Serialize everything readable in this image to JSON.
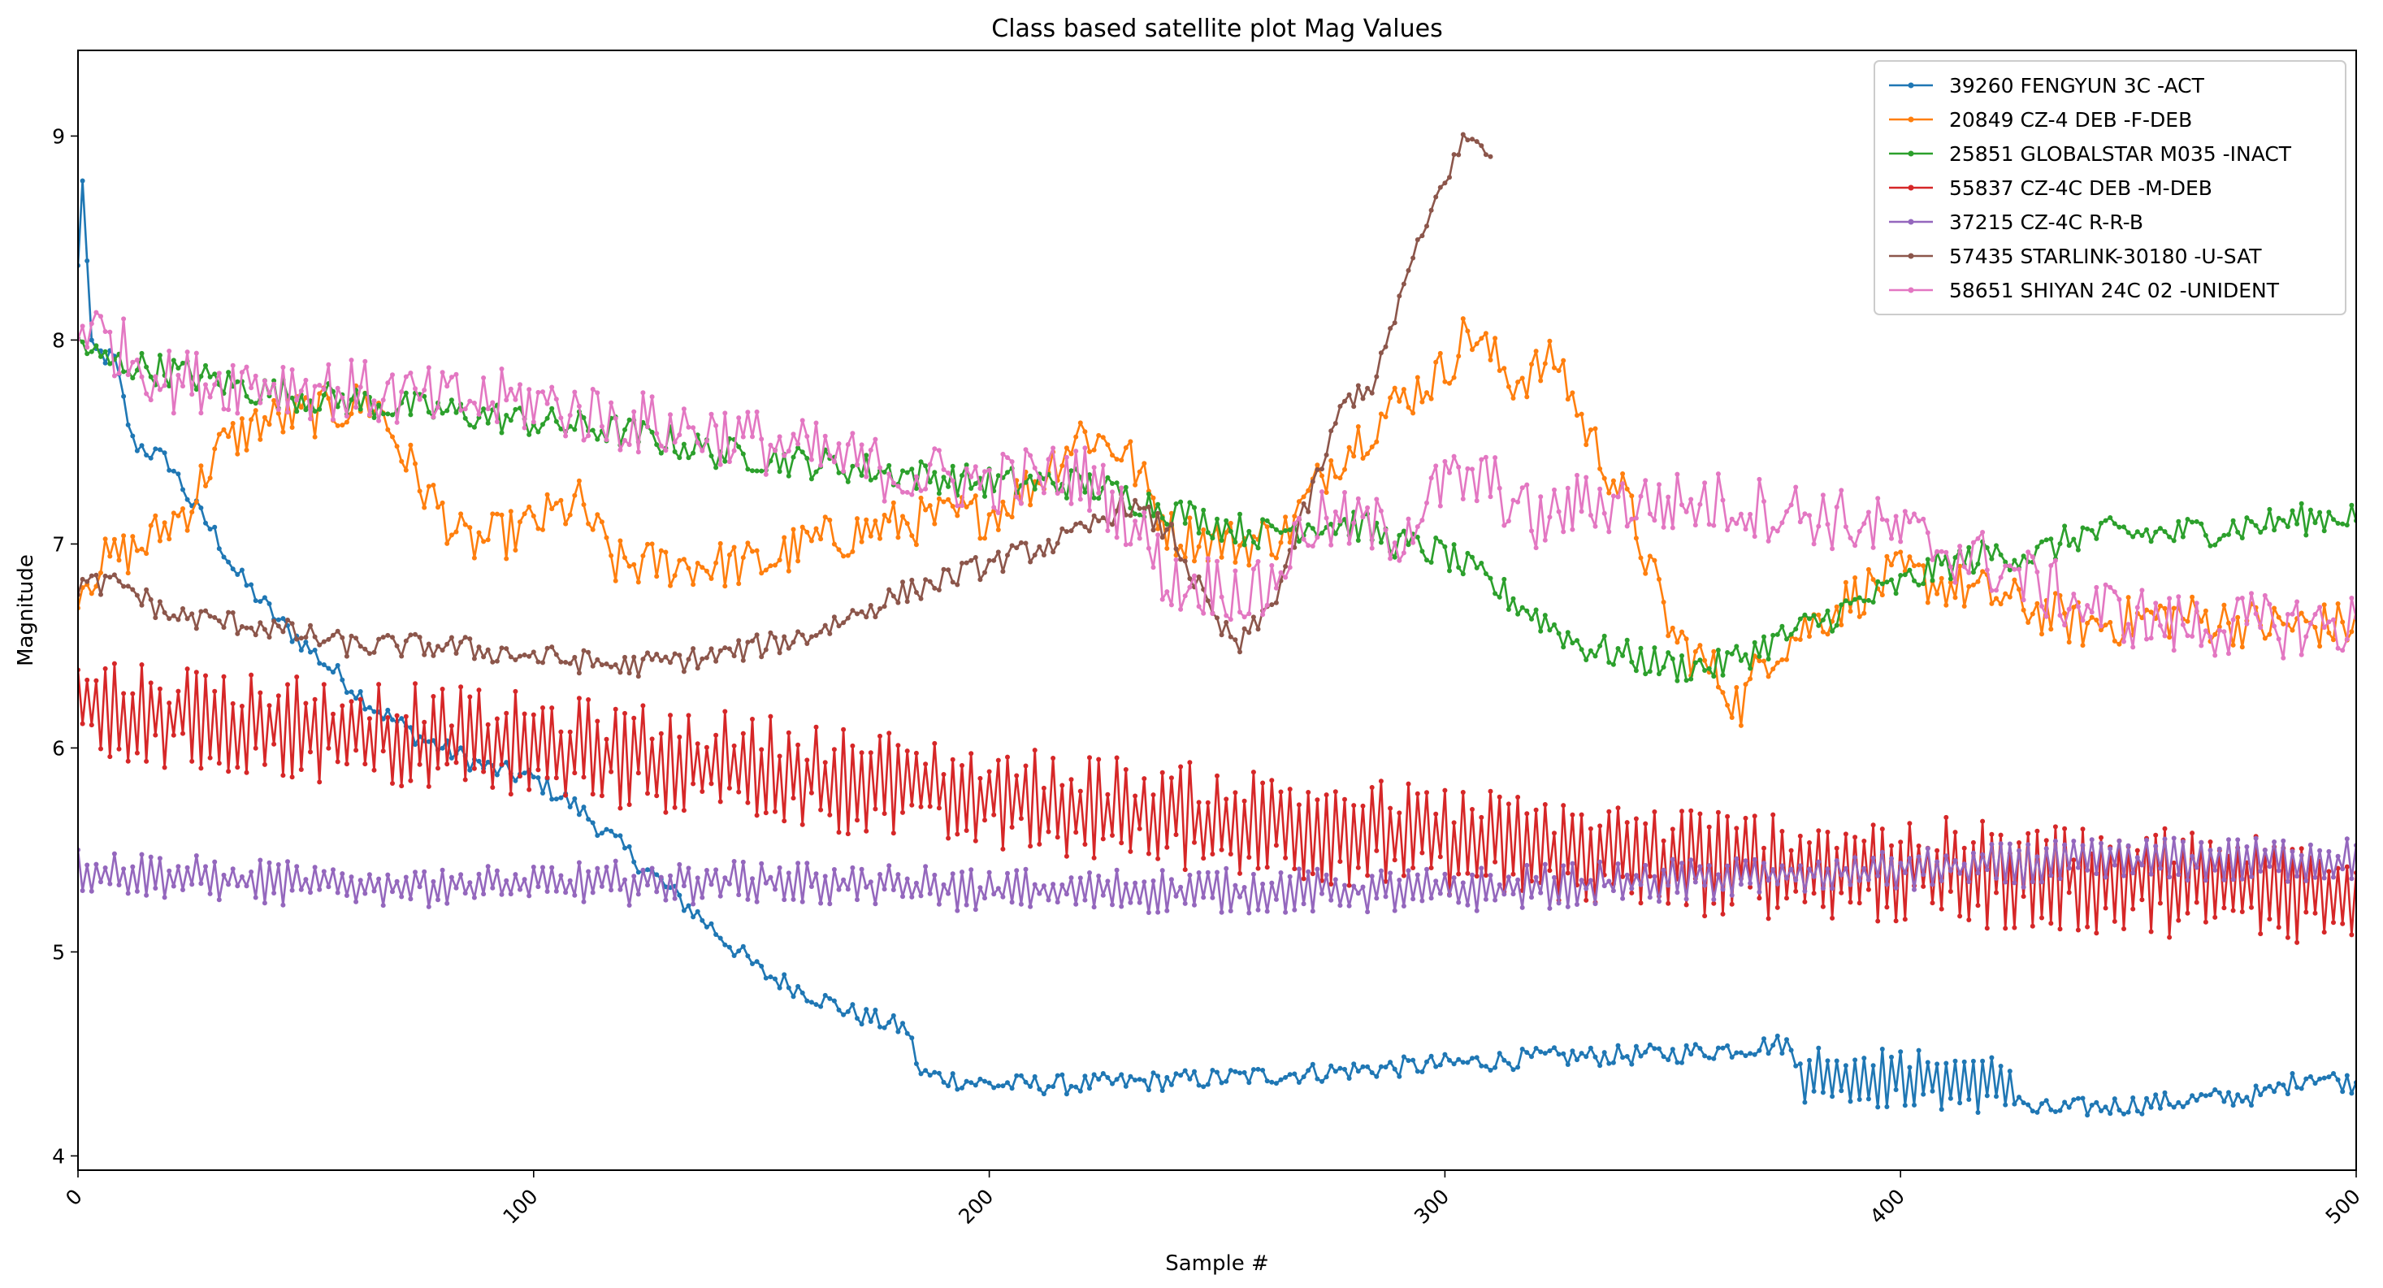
{
  "chart_data": {
    "type": "line",
    "title": "Class based satellite plot Mag Values",
    "xlabel": "Sample #",
    "ylabel": "Magnitude",
    "xlim": [
      0,
      500
    ],
    "ylim": [
      3.93,
      9.42
    ],
    "xticks": [
      "0",
      "100",
      "200",
      "300",
      "400",
      "500"
    ],
    "yticks": [
      "4",
      "5",
      "6",
      "7",
      "8",
      "9"
    ],
    "grid": false,
    "legend_position": "top-right",
    "markers": "dot",
    "series": [
      {
        "name": "39260 FENGYUN 3C -ACT",
        "color": "#1f77b4",
        "x_range": [
          0,
          500
        ],
        "noise": 0.05,
        "keypoints": [
          [
            0,
            8.35
          ],
          [
            1,
            8.8
          ],
          [
            3,
            7.95
          ],
          [
            8,
            7.9
          ],
          [
            12,
            7.5
          ],
          [
            20,
            7.4
          ],
          [
            25,
            7.2
          ],
          [
            30,
            7.05
          ],
          [
            35,
            6.85
          ],
          [
            45,
            6.6
          ],
          [
            55,
            6.4
          ],
          [
            65,
            6.2
          ],
          [
            75,
            6.05
          ],
          [
            90,
            5.9
          ],
          [
            100,
            5.85
          ],
          [
            110,
            5.7
          ],
          [
            120,
            5.5
          ],
          [
            130,
            5.3
          ],
          [
            140,
            5.1
          ],
          [
            150,
            4.9
          ],
          [
            160,
            4.8
          ],
          [
            170,
            4.7
          ],
          [
            182,
            4.62
          ],
          [
            185,
            4.4
          ],
          [
            200,
            4.35
          ],
          [
            220,
            4.35
          ],
          [
            250,
            4.38
          ],
          [
            280,
            4.42
          ],
          [
            300,
            4.45
          ],
          [
            320,
            4.48
          ],
          [
            350,
            4.5
          ],
          [
            375,
            4.55
          ],
          [
            378,
            4.4
          ],
          [
            400,
            4.38
          ],
          [
            425,
            4.35
          ],
          [
            428,
            4.22
          ],
          [
            450,
            4.25
          ],
          [
            480,
            4.3
          ],
          [
            490,
            4.4
          ],
          [
            500,
            4.35
          ]
        ],
        "osc": [
          [
            378,
            425,
            0.1
          ]
        ]
      },
      {
        "name": "20849 CZ-4 DEB -F-DEB",
        "color": "#ff7f0e",
        "x_range": [
          0,
          500
        ],
        "noise": 0.12,
        "keypoints": [
          [
            0,
            6.8
          ],
          [
            5,
            6.9
          ],
          [
            15,
            7.0
          ],
          [
            25,
            7.2
          ],
          [
            30,
            7.45
          ],
          [
            40,
            7.6
          ],
          [
            55,
            7.65
          ],
          [
            65,
            7.7
          ],
          [
            75,
            7.3
          ],
          [
            85,
            7.0
          ],
          [
            95,
            7.05
          ],
          [
            110,
            7.2
          ],
          [
            118,
            6.9
          ],
          [
            130,
            6.9
          ],
          [
            150,
            6.9
          ],
          [
            160,
            7.0
          ],
          [
            180,
            7.1
          ],
          [
            200,
            7.15
          ],
          [
            210,
            7.3
          ],
          [
            220,
            7.55
          ],
          [
            230,
            7.45
          ],
          [
            240,
            7.05
          ],
          [
            255,
            7.0
          ],
          [
            265,
            7.05
          ],
          [
            275,
            7.4
          ],
          [
            290,
            7.7
          ],
          [
            300,
            7.85
          ],
          [
            305,
            8.05
          ],
          [
            315,
            7.8
          ],
          [
            325,
            7.9
          ],
          [
            330,
            7.6
          ],
          [
            340,
            7.2
          ],
          [
            350,
            6.55
          ],
          [
            360,
            6.35
          ],
          [
            365,
            6.2
          ],
          [
            370,
            6.45
          ],
          [
            380,
            6.6
          ],
          [
            390,
            6.75
          ],
          [
            400,
            6.85
          ],
          [
            420,
            6.75
          ],
          [
            440,
            6.6
          ],
          [
            460,
            6.65
          ],
          [
            480,
            6.6
          ],
          [
            500,
            6.6
          ]
        ]
      },
      {
        "name": "25851 GLOBALSTAR M035 -INACT",
        "color": "#2ca02c",
        "x_range": [
          0,
          500
        ],
        "noise": 0.08,
        "keypoints": [
          [
            0,
            8.0
          ],
          [
            5,
            7.9
          ],
          [
            20,
            7.85
          ],
          [
            40,
            7.75
          ],
          [
            60,
            7.7
          ],
          [
            80,
            7.65
          ],
          [
            100,
            7.6
          ],
          [
            120,
            7.55
          ],
          [
            140,
            7.45
          ],
          [
            160,
            7.4
          ],
          [
            180,
            7.35
          ],
          [
            200,
            7.3
          ],
          [
            220,
            7.3
          ],
          [
            235,
            7.2
          ],
          [
            250,
            7.1
          ],
          [
            260,
            7.05
          ],
          [
            270,
            7.1
          ],
          [
            280,
            7.1
          ],
          [
            290,
            7.0
          ],
          [
            300,
            6.95
          ],
          [
            310,
            6.8
          ],
          [
            320,
            6.65
          ],
          [
            330,
            6.5
          ],
          [
            340,
            6.45
          ],
          [
            350,
            6.4
          ],
          [
            360,
            6.4
          ],
          [
            370,
            6.5
          ],
          [
            380,
            6.6
          ],
          [
            390,
            6.7
          ],
          [
            400,
            6.8
          ],
          [
            410,
            6.9
          ],
          [
            420,
            6.95
          ],
          [
            430,
            6.95
          ],
          [
            440,
            7.05
          ],
          [
            460,
            7.05
          ],
          [
            480,
            7.1
          ],
          [
            500,
            7.15
          ]
        ]
      },
      {
        "name": "55837 CZ-4C DEB -M-DEB",
        "color": "#d62728",
        "x_range": [
          0,
          500
        ],
        "noise": 0.1,
        "keypoints": [
          [
            0,
            6.2
          ],
          [
            20,
            6.15
          ],
          [
            50,
            6.1
          ],
          [
            100,
            6.0
          ],
          [
            150,
            5.9
          ],
          [
            200,
            5.75
          ],
          [
            250,
            5.65
          ],
          [
            300,
            5.55
          ],
          [
            350,
            5.45
          ],
          [
            400,
            5.4
          ],
          [
            450,
            5.35
          ],
          [
            500,
            5.3
          ]
        ],
        "osc": [
          [
            0,
            500,
            0.17
          ]
        ]
      },
      {
        "name": "37215 CZ-4C R-R-B",
        "color": "#9467bd",
        "x_range": [
          0,
          500
        ],
        "noise": 0.05,
        "keypoints": [
          [
            0,
            5.4
          ],
          [
            50,
            5.33
          ],
          [
            100,
            5.33
          ],
          [
            150,
            5.35
          ],
          [
            200,
            5.3
          ],
          [
            250,
            5.3
          ],
          [
            300,
            5.3
          ],
          [
            350,
            5.35
          ],
          [
            400,
            5.4
          ],
          [
            450,
            5.45
          ],
          [
            500,
            5.45
          ]
        ],
        "osc": [
          [
            0,
            500,
            0.06
          ]
        ]
      },
      {
        "name": "57435 STARLINK-30180 -U-SAT",
        "color": "#8c564b",
        "x_range": [
          0,
          310
        ],
        "noise": 0.06,
        "keypoints": [
          [
            0,
            6.8
          ],
          [
            10,
            6.8
          ],
          [
            20,
            6.65
          ],
          [
            40,
            6.6
          ],
          [
            60,
            6.5
          ],
          [
            80,
            6.5
          ],
          [
            100,
            6.45
          ],
          [
            120,
            6.4
          ],
          [
            140,
            6.45
          ],
          [
            150,
            6.5
          ],
          [
            160,
            6.55
          ],
          [
            180,
            6.75
          ],
          [
            200,
            6.9
          ],
          [
            220,
            7.05
          ],
          [
            230,
            7.2
          ],
          [
            240,
            7.05
          ],
          [
            250,
            6.6
          ],
          [
            255,
            6.5
          ],
          [
            262,
            6.7
          ],
          [
            270,
            7.2
          ],
          [
            278,
            7.7
          ],
          [
            285,
            7.8
          ],
          [
            290,
            8.2
          ],
          [
            300,
            8.8
          ],
          [
            305,
            9.0
          ],
          [
            310,
            8.9
          ]
        ]
      },
      {
        "name": "58651 SHIYAN 24C 02 -UNIDENT",
        "color": "#e377c2",
        "x_range": [
          0,
          500
        ],
        "noise": 0.16,
        "keypoints": [
          [
            0,
            8.1
          ],
          [
            20,
            7.8
          ],
          [
            40,
            7.8
          ],
          [
            60,
            7.75
          ],
          [
            80,
            7.7
          ],
          [
            100,
            7.7
          ],
          [
            120,
            7.6
          ],
          [
            140,
            7.55
          ],
          [
            160,
            7.45
          ],
          [
            180,
            7.35
          ],
          [
            200,
            7.3
          ],
          [
            220,
            7.35
          ],
          [
            232,
            7.1
          ],
          [
            240,
            6.8
          ],
          [
            250,
            6.8
          ],
          [
            260,
            6.75
          ],
          [
            270,
            7.1
          ],
          [
            280,
            7.1
          ],
          [
            290,
            7.05
          ],
          [
            300,
            7.3
          ],
          [
            310,
            7.3
          ],
          [
            320,
            7.1
          ],
          [
            330,
            7.2
          ],
          [
            340,
            7.2
          ],
          [
            360,
            7.2
          ],
          [
            380,
            7.15
          ],
          [
            400,
            7.05
          ],
          [
            420,
            6.9
          ],
          [
            440,
            6.7
          ],
          [
            460,
            6.6
          ],
          [
            480,
            6.6
          ],
          [
            500,
            6.6
          ]
        ]
      }
    ]
  }
}
